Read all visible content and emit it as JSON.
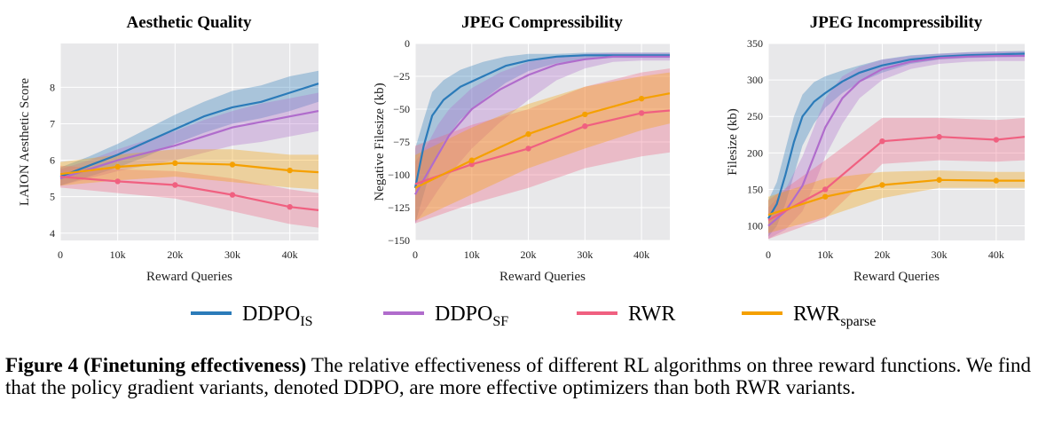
{
  "legend": [
    {
      "name": "DDPO",
      "sub": "IS",
      "color": "#2b7bb9"
    },
    {
      "name": "DDPO",
      "sub": "SF",
      "color": "#b06ccc"
    },
    {
      "name": "RWR",
      "sub": "",
      "color": "#f06080"
    },
    {
      "name": "RWR",
      "sub": "sparse",
      "color": "#f5a000"
    }
  ],
  "caption": {
    "label": "Figure 4 (Finetuning effectiveness)",
    "text": " The relative effectiveness of different RL algorithms on three reward functions. We find that the policy gradient variants, denoted DDPO, are more effective optimizers than both RWR variants."
  },
  "chart_data": [
    {
      "type": "line",
      "title": "Aesthetic Quality",
      "xlabel": "Reward Queries",
      "ylabel": "LAION Aesthetic Score",
      "xlim": [
        0,
        45000
      ],
      "ylim": [
        3.8,
        9.2
      ],
      "xticks": [
        0,
        10000,
        20000,
        30000,
        40000
      ],
      "xticklabels": [
        "0",
        "10k",
        "20k",
        "30k",
        "40k"
      ],
      "yticks": [
        4,
        5,
        6,
        7,
        8
      ],
      "yticklabels": [
        "4",
        "5",
        "6",
        "7",
        "8"
      ],
      "grid": true,
      "series": [
        {
          "name": "DDPO_IS",
          "color": "#2b7bb9",
          "x": [
            0,
            5000,
            10000,
            15000,
            20000,
            25000,
            30000,
            35000,
            40000,
            45000
          ],
          "y": [
            5.55,
            5.85,
            6.15,
            6.5,
            6.85,
            7.2,
            7.45,
            7.6,
            7.85,
            8.1
          ],
          "lo": [
            5.3,
            5.55,
            5.8,
            6.1,
            6.45,
            6.75,
            7.0,
            7.15,
            7.35,
            7.6
          ],
          "hi": [
            5.8,
            6.1,
            6.45,
            6.85,
            7.25,
            7.6,
            7.9,
            8.05,
            8.3,
            8.45
          ]
        },
        {
          "name": "DDPO_SF",
          "color": "#b06ccc",
          "x": [
            0,
            5000,
            10000,
            15000,
            20000,
            25000,
            30000,
            35000,
            40000,
            45000
          ],
          "y": [
            5.5,
            5.75,
            6.0,
            6.2,
            6.4,
            6.65,
            6.9,
            7.05,
            7.2,
            7.35
          ],
          "lo": [
            5.3,
            5.5,
            5.7,
            5.85,
            6.0,
            6.2,
            6.4,
            6.5,
            6.65,
            6.8
          ],
          "hi": [
            5.75,
            6.0,
            6.3,
            6.55,
            6.8,
            7.1,
            7.35,
            7.55,
            7.7,
            7.85
          ]
        },
        {
          "name": "RWR",
          "color": "#f06080",
          "x": [
            0,
            10000,
            20000,
            30000,
            40000,
            45000
          ],
          "y": [
            5.55,
            5.42,
            5.32,
            5.05,
            4.72,
            4.63
          ],
          "lo": [
            5.25,
            5.1,
            4.95,
            4.6,
            4.25,
            4.15
          ],
          "hi": [
            5.85,
            5.75,
            5.7,
            5.5,
            5.2,
            5.1
          ],
          "markers": [
            10000,
            20000,
            30000,
            40000
          ]
        },
        {
          "name": "RWR_sparse",
          "color": "#f5a000",
          "x": [
            0,
            10000,
            20000,
            30000,
            40000,
            45000
          ],
          "y": [
            5.62,
            5.82,
            5.92,
            5.88,
            5.72,
            5.67
          ],
          "lo": [
            5.3,
            5.45,
            5.55,
            5.4,
            5.25,
            5.2
          ],
          "hi": [
            5.95,
            6.15,
            6.3,
            6.3,
            6.15,
            6.15
          ],
          "markers": [
            10000,
            20000,
            30000,
            40000
          ]
        }
      ]
    },
    {
      "type": "line",
      "title": "JPEG Compressibility",
      "xlabel": "Reward Queries",
      "ylabel": "Negative Filesize (kb)",
      "xlim": [
        0,
        45000
      ],
      "ylim": [
        -150,
        0
      ],
      "xticks": [
        0,
        10000,
        20000,
        30000,
        40000
      ],
      "xticklabels": [
        "0",
        "10k",
        "20k",
        "30k",
        "40k"
      ],
      "yticks": [
        -150,
        -125,
        -100,
        -75,
        -50,
        -25,
        0
      ],
      "yticklabels": [
        "−150",
        "−125",
        "−100",
        "−75",
        "−50",
        "−25",
        "0"
      ],
      "grid": true,
      "series": [
        {
          "name": "DDPO_IS",
          "color": "#2b7bb9",
          "x": [
            0,
            1500,
            3000,
            5000,
            8000,
            12000,
            16000,
            20000,
            25000,
            30000,
            35000,
            40000,
            45000
          ],
          "y": [
            -110,
            -78,
            -55,
            -43,
            -33,
            -25,
            -17,
            -13,
            -10,
            -9,
            -9,
            -9,
            -9
          ],
          "lo": [
            -137,
            -115,
            -92,
            -75,
            -58,
            -43,
            -30,
            -21,
            -15,
            -12,
            -11,
            -11,
            -11
          ],
          "hi": [
            -80,
            -58,
            -37,
            -28,
            -20,
            -14,
            -10,
            -8,
            -8,
            -7,
            -7,
            -7,
            -7
          ]
        },
        {
          "name": "DDPO_SF",
          "color": "#b06ccc",
          "x": [
            0,
            2000,
            4000,
            6000,
            10000,
            15000,
            20000,
            25000,
            30000,
            35000,
            40000,
            45000
          ],
          "y": [
            -115,
            -100,
            -85,
            -70,
            -50,
            -35,
            -24,
            -16,
            -12,
            -10,
            -10,
            -10
          ],
          "lo": [
            -137,
            -125,
            -112,
            -100,
            -80,
            -60,
            -43,
            -28,
            -19,
            -14,
            -13,
            -13
          ],
          "hi": [
            -90,
            -78,
            -62,
            -50,
            -34,
            -22,
            -14,
            -10,
            -8,
            -7,
            -7,
            -7
          ]
        },
        {
          "name": "RWR",
          "color": "#f06080",
          "x": [
            0,
            10000,
            20000,
            30000,
            40000,
            45000
          ],
          "y": [
            -107,
            -92,
            -80,
            -63,
            -53,
            -51
          ],
          "lo": [
            -137,
            -122,
            -110,
            -95,
            -86,
            -83
          ],
          "hi": [
            -78,
            -62,
            -50,
            -33,
            -22,
            -19
          ],
          "markers": [
            10000,
            20000,
            30000,
            40000
          ]
        },
        {
          "name": "RWR_sparse",
          "color": "#f5a000",
          "x": [
            0,
            10000,
            20000,
            30000,
            40000,
            45000
          ],
          "y": [
            -110,
            -89,
            -69,
            -54,
            -42,
            -38
          ],
          "lo": [
            -135,
            -115,
            -95,
            -80,
            -66,
            -61
          ],
          "hi": [
            -85,
            -64,
            -46,
            -33,
            -25,
            -22
          ],
          "markers": [
            10000,
            20000,
            30000,
            40000
          ]
        }
      ]
    },
    {
      "type": "line",
      "title": "JPEG Incompressibility",
      "xlabel": "Reward Queries",
      "ylabel": "Filesize (kb)",
      "xlim": [
        0,
        45000
      ],
      "ylim": [
        80,
        350
      ],
      "xticks": [
        0,
        10000,
        20000,
        30000,
        40000
      ],
      "xticklabels": [
        "0",
        "10k",
        "20k",
        "30k",
        "40k"
      ],
      "yticks": [
        100,
        150,
        200,
        250,
        300,
        350
      ],
      "yticklabels": [
        "100",
        "150",
        "200",
        "250",
        "300",
        "350"
      ],
      "grid": true,
      "series": [
        {
          "name": "DDPO_IS",
          "color": "#2b7bb9",
          "x": [
            0,
            1500,
            3000,
            4500,
            6000,
            8000,
            10000,
            13000,
            16000,
            20000,
            25000,
            30000,
            35000,
            40000,
            45000
          ],
          "y": [
            110,
            130,
            170,
            215,
            250,
            270,
            282,
            298,
            310,
            320,
            328,
            332,
            334,
            335,
            336
          ],
          "lo": [
            85,
            100,
            130,
            170,
            210,
            240,
            262,
            282,
            297,
            310,
            322,
            328,
            330,
            331,
            332
          ],
          "hi": [
            135,
            160,
            205,
            250,
            280,
            297,
            305,
            313,
            320,
            328,
            334,
            336,
            338,
            339,
            340
          ]
        },
        {
          "name": "DDPO_SF",
          "color": "#b06ccc",
          "x": [
            0,
            3000,
            6000,
            8000,
            10000,
            13000,
            16000,
            20000,
            25000,
            30000,
            35000,
            40000,
            45000
          ],
          "y": [
            100,
            120,
            155,
            195,
            235,
            275,
            298,
            315,
            325,
            330,
            332,
            333,
            333
          ],
          "lo": [
            82,
            95,
            120,
            155,
            195,
            240,
            275,
            300,
            315,
            322,
            325,
            326,
            326
          ],
          "hi": [
            125,
            150,
            195,
            235,
            275,
            305,
            318,
            328,
            333,
            336,
            338,
            339,
            339
          ]
        },
        {
          "name": "RWR",
          "color": "#f06080",
          "x": [
            0,
            10000,
            20000,
            30000,
            40000,
            45000
          ],
          "y": [
            108,
            150,
            216,
            222,
            218,
            222
          ],
          "lo": [
            82,
            110,
            185,
            190,
            188,
            190
          ],
          "hi": [
            135,
            190,
            248,
            248,
            245,
            248
          ],
          "markers": [
            10000,
            20000,
            30000,
            40000
          ]
        },
        {
          "name": "RWR_sparse",
          "color": "#f5a000",
          "x": [
            0,
            10000,
            20000,
            30000,
            40000,
            45000
          ],
          "y": [
            115,
            140,
            156,
            163,
            162,
            162
          ],
          "lo": [
            90,
            112,
            138,
            152,
            152,
            152
          ],
          "hi": [
            140,
            165,
            174,
            176,
            174,
            174
          ],
          "markers": [
            10000,
            20000,
            30000,
            40000
          ]
        }
      ]
    }
  ]
}
